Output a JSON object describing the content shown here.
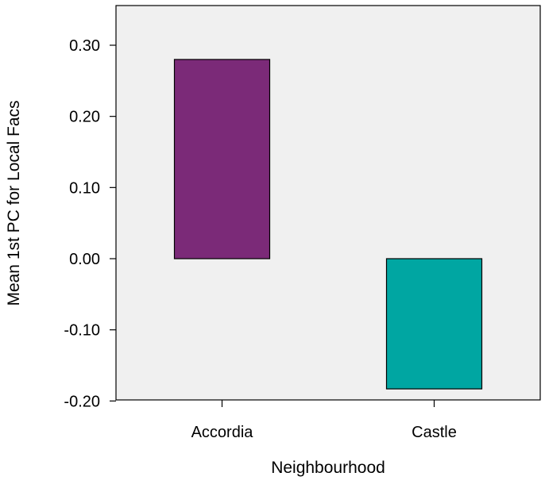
{
  "chart_data": {
    "type": "bar",
    "categories": [
      "Accordia",
      "Castle"
    ],
    "values": [
      0.28,
      -0.183
    ],
    "xlabel": "Neighbourhood",
    "ylabel": "Mean 1st PC for Local Facs",
    "ylim": [
      -0.2,
      0.32
    ],
    "yticks": [
      0.3,
      0.2,
      0.1,
      0.0,
      -0.1,
      -0.2
    ],
    "ytick_labels": [
      "0.30",
      "0.20",
      "0.10",
      "0.00",
      "-0.10",
      "-0.20"
    ],
    "grid": false,
    "legend": "none",
    "colors": {
      "plot_background": "#f0f0f0",
      "bars": [
        "#7b2a78",
        "#00a6a2"
      ],
      "stroke": "#000000"
    }
  }
}
